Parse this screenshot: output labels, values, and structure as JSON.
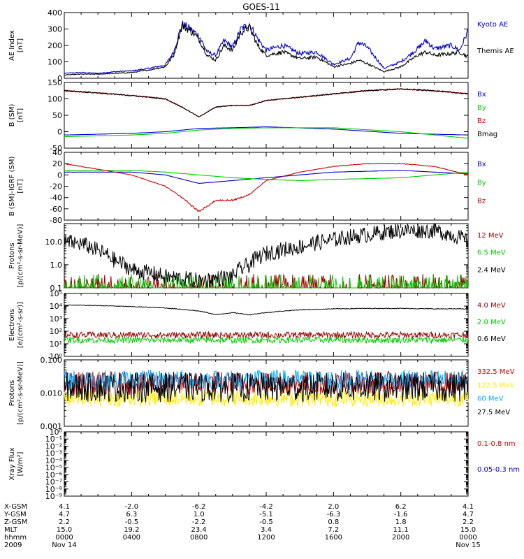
{
  "title": "GOES-11",
  "colors": {
    "black": "#000000",
    "blue": "#0000cc",
    "red": "#cc0000",
    "green": "#00cc00",
    "darkred": "#990000",
    "yellow": "#ffee00",
    "cyan": "#00aaff",
    "axis": "#000000"
  },
  "x_axis": {
    "rows": [
      {
        "label": "X-GSM",
        "values": [
          "4.1",
          "-2.0",
          "-6.2",
          "-4.2",
          "2.0",
          "6.2",
          "4.1"
        ]
      },
      {
        "label": "Y-GSM",
        "values": [
          "4.7",
          "6.3",
          "1.0",
          "-5.1",
          "-6.3",
          "-1.6",
          "4.7"
        ]
      },
      {
        "label": "Z-GSM",
        "values": [
          "2.2",
          "-0.5",
          "-2.2",
          "-0.5",
          "0.8",
          "1.8",
          "2.2"
        ]
      },
      {
        "label": "MLT",
        "values": [
          "15.0",
          "19.2",
          "23.4",
          "3.4",
          "7.2",
          "11.1",
          "15.0"
        ]
      },
      {
        "label": "hhmm",
        "values": [
          "0000",
          "0400",
          "0800",
          "1200",
          "1600",
          "2000",
          "0000"
        ]
      },
      {
        "label": "2009",
        "values": [
          "Nov 14",
          "",
          "",
          "",
          "",
          "",
          "Nov 15"
        ]
      }
    ]
  },
  "chart_data": [
    {
      "type": "line",
      "ylabel": "AE Index\n[nT]",
      "ylim": [
        0,
        400
      ],
      "yscale": "linear",
      "yticks": [
        "0",
        "100",
        "200",
        "300",
        "400"
      ],
      "series": [
        {
          "name": "Kyoto AE",
          "color": "blue",
          "x": [
            0,
            1,
            2,
            3,
            4,
            5,
            6,
            6.5,
            7,
            7.5,
            8,
            8.5,
            9,
            9.5,
            10,
            10.5,
            11,
            11.5,
            12,
            13,
            14,
            15,
            16,
            17,
            17.5,
            18,
            19,
            20,
            21,
            21.5,
            22,
            23,
            23.5,
            24
          ],
          "y": [
            30,
            35,
            30,
            40,
            45,
            60,
            80,
            160,
            330,
            300,
            260,
            160,
            140,
            230,
            190,
            300,
            330,
            240,
            170,
            200,
            150,
            160,
            85,
            120,
            220,
            190,
            60,
            100,
            180,
            230,
            180,
            200,
            170,
            290
          ]
        },
        {
          "name": "Themis AE",
          "color": "black",
          "x": [
            0,
            1,
            2,
            3,
            4,
            5,
            6,
            6.5,
            7,
            7.5,
            8,
            8.5,
            9,
            9.5,
            10,
            10.5,
            11,
            11.5,
            12,
            13,
            14,
            15,
            16,
            17,
            17.5,
            18,
            19,
            20,
            21,
            21.5,
            22,
            23,
            23.5,
            24
          ],
          "y": [
            20,
            25,
            25,
            30,
            35,
            50,
            70,
            140,
            320,
            290,
            240,
            140,
            110,
            200,
            170,
            280,
            310,
            200,
            140,
            160,
            120,
            130,
            70,
            90,
            110,
            90,
            40,
            70,
            140,
            160,
            140,
            150,
            160,
            130
          ]
        }
      ]
    },
    {
      "type": "line",
      "ylabel": "B (SM)\n[nT]",
      "ylim": [
        -50,
        150
      ],
      "yscale": "linear",
      "yticks": [
        "-50",
        "0",
        "50",
        "100",
        "150"
      ],
      "series": [
        {
          "name": "Bx",
          "color": "blue",
          "x": [
            0,
            4,
            6,
            8,
            10,
            12,
            16,
            20,
            24
          ],
          "y": [
            -10,
            -5,
            0,
            10,
            12,
            15,
            8,
            -5,
            -10
          ]
        },
        {
          "name": "By",
          "color": "green",
          "x": [
            0,
            4,
            6,
            8,
            10,
            12,
            16,
            20,
            24
          ],
          "y": [
            -15,
            -10,
            -5,
            5,
            10,
            12,
            12,
            0,
            -20
          ]
        },
        {
          "name": "Bz",
          "color": "red",
          "x": [
            0,
            2,
            4,
            6,
            7,
            8,
            9,
            10,
            11,
            12,
            14,
            16,
            18,
            20,
            22,
            24
          ],
          "y": [
            125,
            118,
            110,
            100,
            75,
            45,
            75,
            80,
            80,
            95,
            105,
            115,
            125,
            130,
            125,
            115
          ]
        },
        {
          "name": "Bmag",
          "color": "black",
          "x": [
            0,
            2,
            4,
            6,
            7,
            8,
            9,
            10,
            11,
            12,
            14,
            16,
            18,
            20,
            22,
            24
          ],
          "y": [
            125,
            118,
            110,
            100,
            75,
            45,
            75,
            80,
            80,
            95,
            105,
            115,
            125,
            130,
            125,
            115
          ]
        }
      ]
    },
    {
      "type": "line",
      "ylabel": "B (SM)-IGRF (SM)\n[nT]",
      "ylim": [
        -80,
        40
      ],
      "yscale": "linear",
      "yticks": [
        "-80",
        "-60",
        "-40",
        "-20",
        "0",
        "20",
        "40"
      ],
      "series": [
        {
          "name": "Bx",
          "color": "blue",
          "x": [
            0,
            4,
            6,
            8,
            10,
            12,
            14,
            16,
            20,
            24
          ],
          "y": [
            5,
            5,
            0,
            -15,
            -10,
            -5,
            0,
            5,
            8,
            2
          ]
        },
        {
          "name": "By",
          "color": "green",
          "x": [
            0,
            4,
            6,
            8,
            10,
            12,
            14,
            16,
            20,
            24
          ],
          "y": [
            8,
            8,
            5,
            0,
            -5,
            -8,
            -10,
            -8,
            -5,
            5
          ]
        },
        {
          "name": "Bz",
          "color": "red",
          "x": [
            0,
            2,
            4,
            6,
            7,
            8,
            9,
            10,
            11,
            12,
            14,
            16,
            18,
            20,
            22,
            24
          ],
          "y": [
            20,
            10,
            0,
            -20,
            -40,
            -65,
            -45,
            -45,
            -35,
            -10,
            5,
            15,
            20,
            20,
            15,
            0
          ]
        }
      ]
    },
    {
      "type": "line",
      "ylabel": "Protons\n[p/(cm²-s-sr-MeV)]",
      "ylim": [
        0.1,
        60
      ],
      "yscale": "log",
      "yticks": [
        "0.1",
        "1.0",
        "10.0"
      ],
      "series": [
        {
          "name": "12 MeV",
          "color": "darkred",
          "x": [
            0,
            24
          ],
          "y": [
            0.11,
            0.11
          ]
        },
        {
          "name": "6.5 MeV",
          "color": "green",
          "x": [
            0,
            24
          ],
          "y": [
            0.2,
            0.2
          ]
        },
        {
          "name": "2.4 MeV",
          "color": "black",
          "x": [
            0,
            1,
            2,
            3,
            4,
            6,
            8,
            10,
            11,
            12,
            14,
            16,
            18,
            20,
            22,
            23,
            24
          ],
          "y": [
            10,
            8,
            4,
            1.5,
            0.6,
            0.3,
            0.2,
            0.3,
            1.0,
            3,
            6,
            12,
            20,
            30,
            30,
            20,
            10
          ]
        }
      ]
    },
    {
      "type": "line",
      "ylabel": "Electrons\n[e/(cm²-s-sr)]",
      "ylim": [
        1,
        100000
      ],
      "yscale": "log",
      "yticks": [
        "10⁰",
        "10¹",
        "10²",
        "10³",
        "10⁴",
        "10⁵"
      ],
      "series": [
        {
          "name": "4.0 MeV",
          "color": "darkred",
          "x": [
            0,
            24
          ],
          "y": [
            50,
            50
          ]
        },
        {
          "name": "2.0 MeV",
          "color": "green",
          "x": [
            0,
            24
          ],
          "y": [
            20,
            20
          ]
        },
        {
          "name": "0.6 MeV",
          "color": "black",
          "x": [
            0,
            2,
            4,
            6,
            8,
            9,
            10,
            11,
            12,
            14,
            16,
            18,
            20,
            22,
            24
          ],
          "y": [
            12000,
            11000,
            9000,
            7000,
            4000,
            2000,
            3000,
            2000,
            3000,
            5000,
            6000,
            6500,
            6500,
            6000,
            6000
          ]
        }
      ]
    },
    {
      "type": "line",
      "ylabel": "Protons\n[p/(cm²-s-sr-MeV)]",
      "ylim": [
        0.001,
        0.1
      ],
      "yscale": "log",
      "yticks": [
        "0.001",
        "0.010",
        "0.100"
      ],
      "series": [
        {
          "name": "332.5 MeV",
          "color": "red",
          "x": [
            0,
            24
          ],
          "y": [
            0.02,
            0.02
          ]
        },
        {
          "name": "122.5 MeV",
          "color": "yellow",
          "x": [
            0,
            24
          ],
          "y": [
            0.007,
            0.007
          ]
        },
        {
          "name": "60 MeV",
          "color": "cyan",
          "x": [
            0,
            24
          ],
          "y": [
            0.025,
            0.025
          ]
        },
        {
          "name": "27.5 MeV",
          "color": "black",
          "x": [
            0,
            24
          ],
          "y": [
            0.015,
            0.015
          ]
        }
      ]
    },
    {
      "type": "line",
      "ylabel": "Xray Flux\n[W/m²]",
      "ylim": [
        1e-09,
        1
      ],
      "yscale": "log",
      "yticks": [
        "10⁻⁹",
        "10⁻⁸",
        "10⁻⁷",
        "10⁻⁶",
        "10⁻⁵",
        "10⁻⁴",
        "10⁻³",
        "10⁻²",
        "10⁻¹",
        "10⁰"
      ],
      "series": [
        {
          "name": "0.1-0.8 nm",
          "color": "red",
          "x": [],
          "y": []
        },
        {
          "name": "0.05-0.3 nm",
          "color": "blue",
          "x": [],
          "y": []
        }
      ]
    }
  ]
}
